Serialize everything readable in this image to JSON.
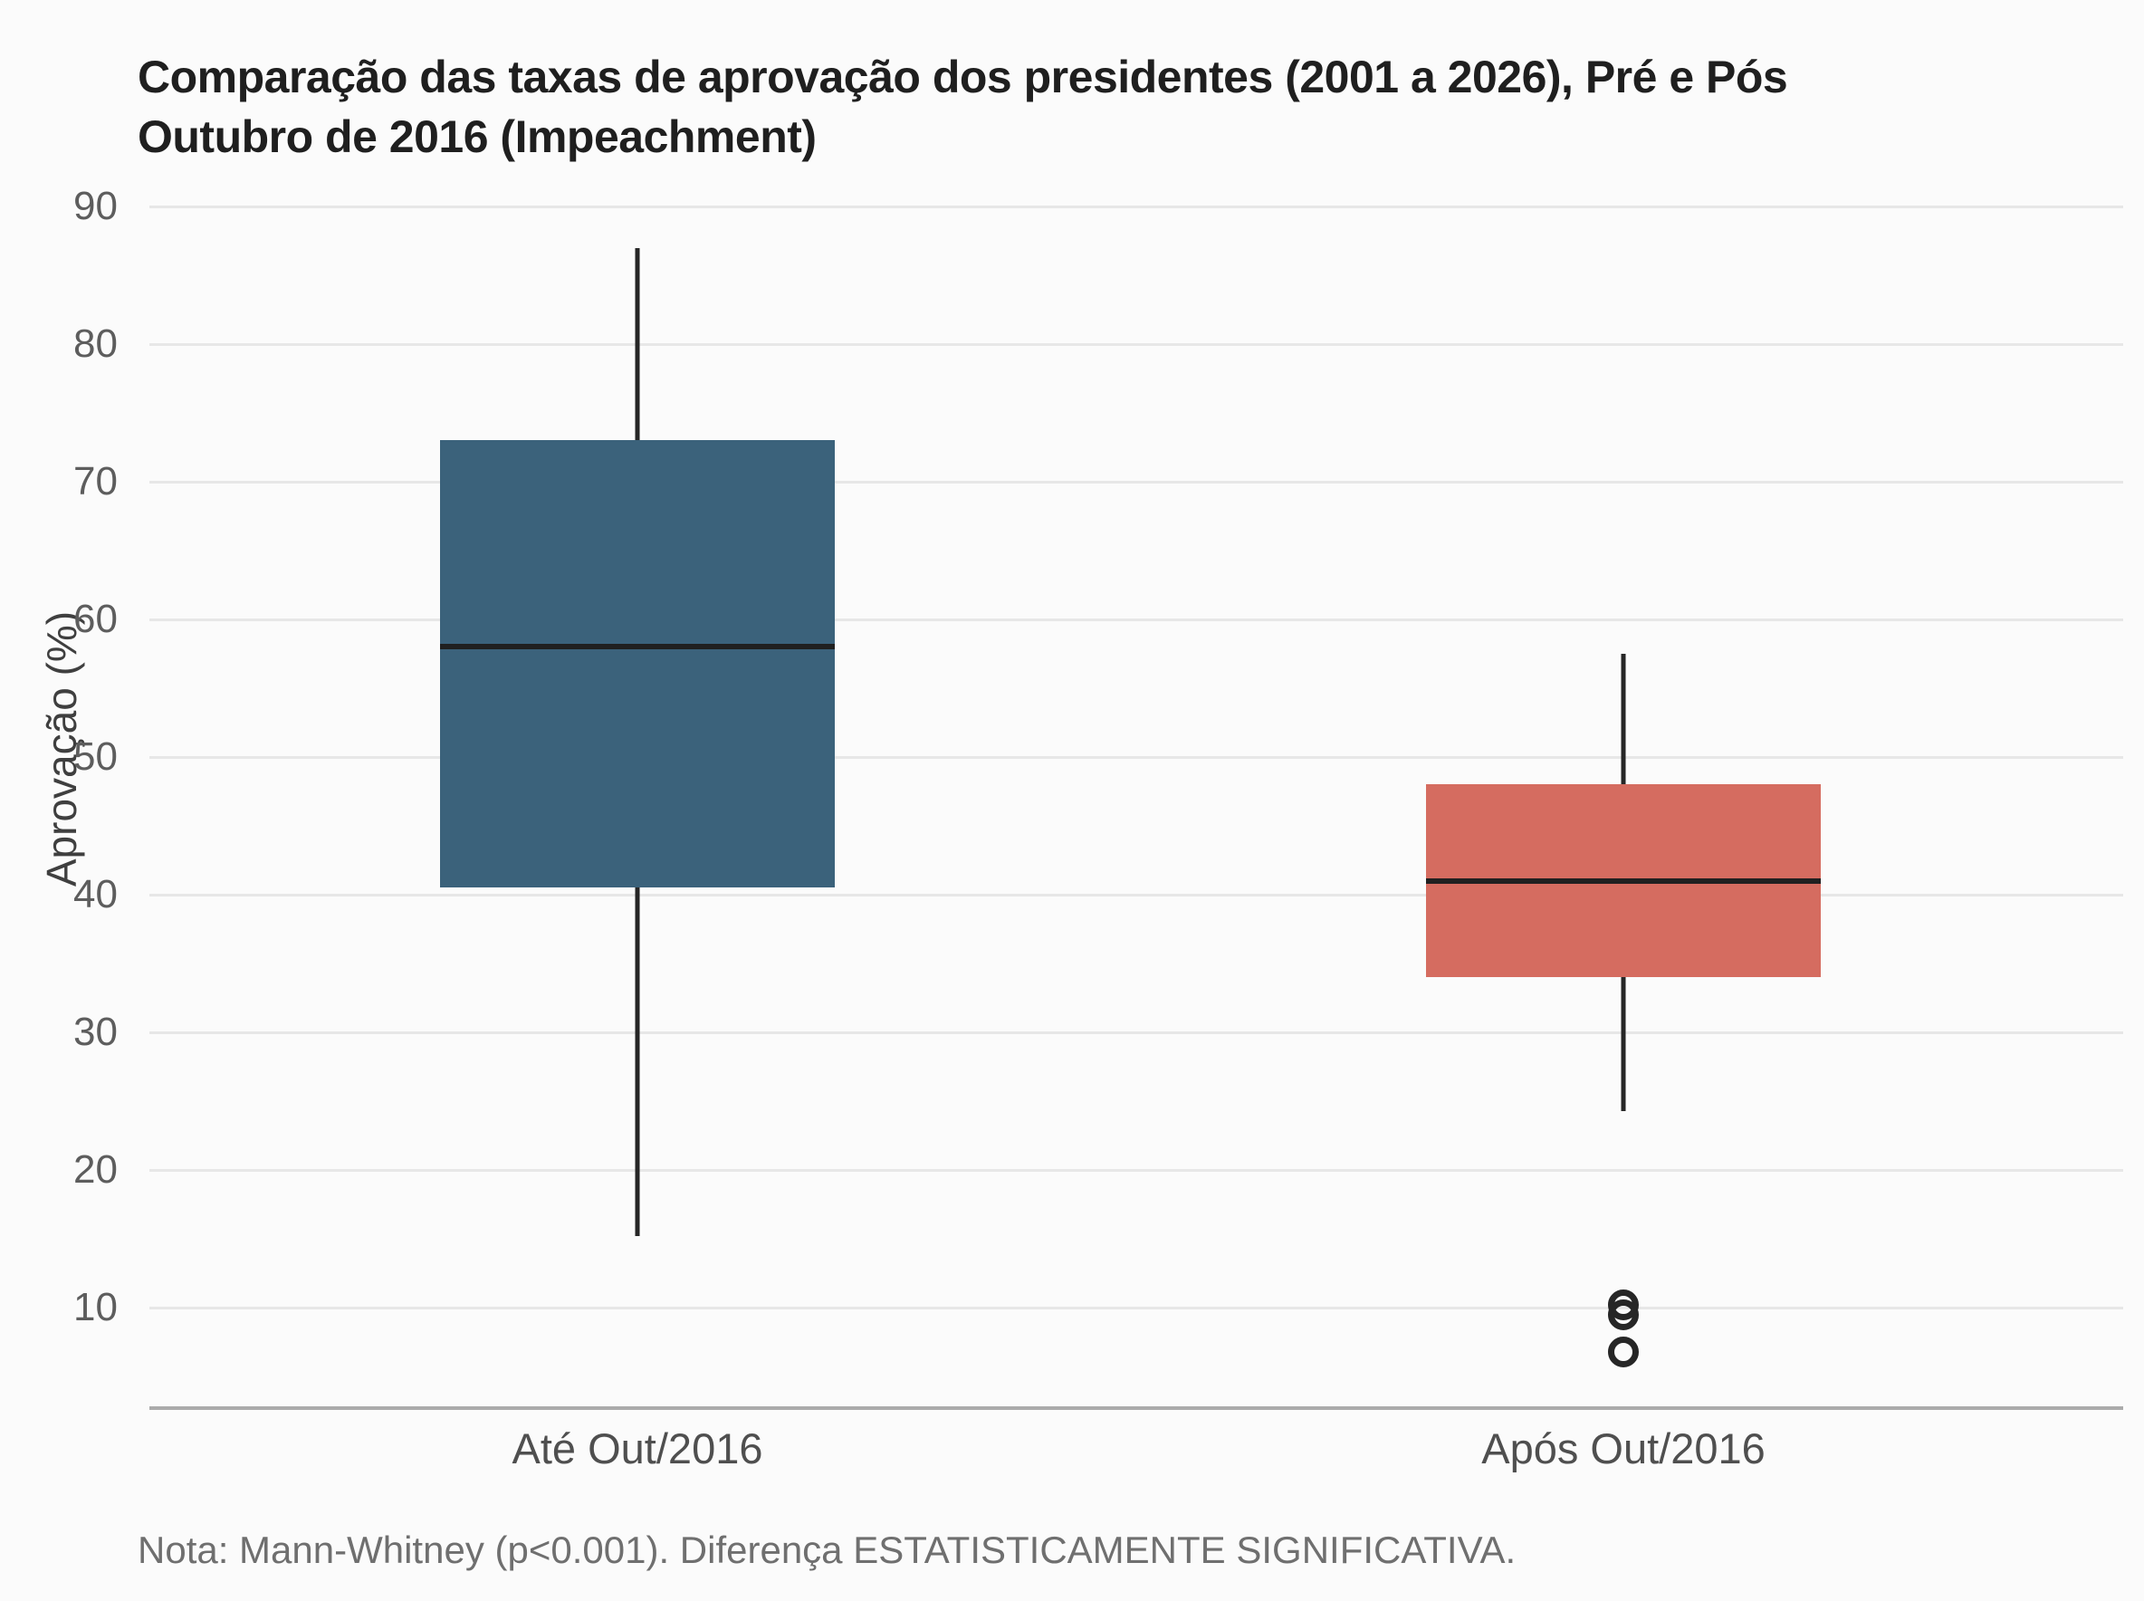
{
  "chart_data": {
    "type": "boxplot",
    "title": "Comparação das taxas de aprovação dos presidentes (2001 a 2026), Pré e Pós Outubro de 2016 (Impeachment)",
    "ylabel": "Aprovação (%)",
    "yticks": [
      10,
      20,
      30,
      40,
      50,
      60,
      70,
      80,
      90
    ],
    "ylim": [
      2.7,
      93.9
    ],
    "grid": "horizontal",
    "legend": "none",
    "categories": [
      "Até Out/2016",
      "Após Out/2016"
    ],
    "series": [
      {
        "name": "Até Out/2016",
        "min": 15.2,
        "q1": 40.5,
        "median": 58,
        "q3": 73,
        "max": 87,
        "outliers": [],
        "color": "#3b627b"
      },
      {
        "name": "Após Out/2016",
        "min": 24.3,
        "q1": 34,
        "median": 41,
        "q3": 48,
        "max": 57.5,
        "outliers": [
          10.2,
          9.5,
          6.8
        ],
        "color": "#d56c60"
      }
    ],
    "note": "Nota: Mann-Whitney (p<0.001). Diferença ESTATISTICAMENTE SIGNIFICATIVA.",
    "colors": {
      "background": "#fbfbfb",
      "gridline": "#e7e7e7",
      "axis_line": "#ababab",
      "box_pre": "#3b627b",
      "box_post": "#d56c60",
      "whisker": "#262626"
    }
  }
}
